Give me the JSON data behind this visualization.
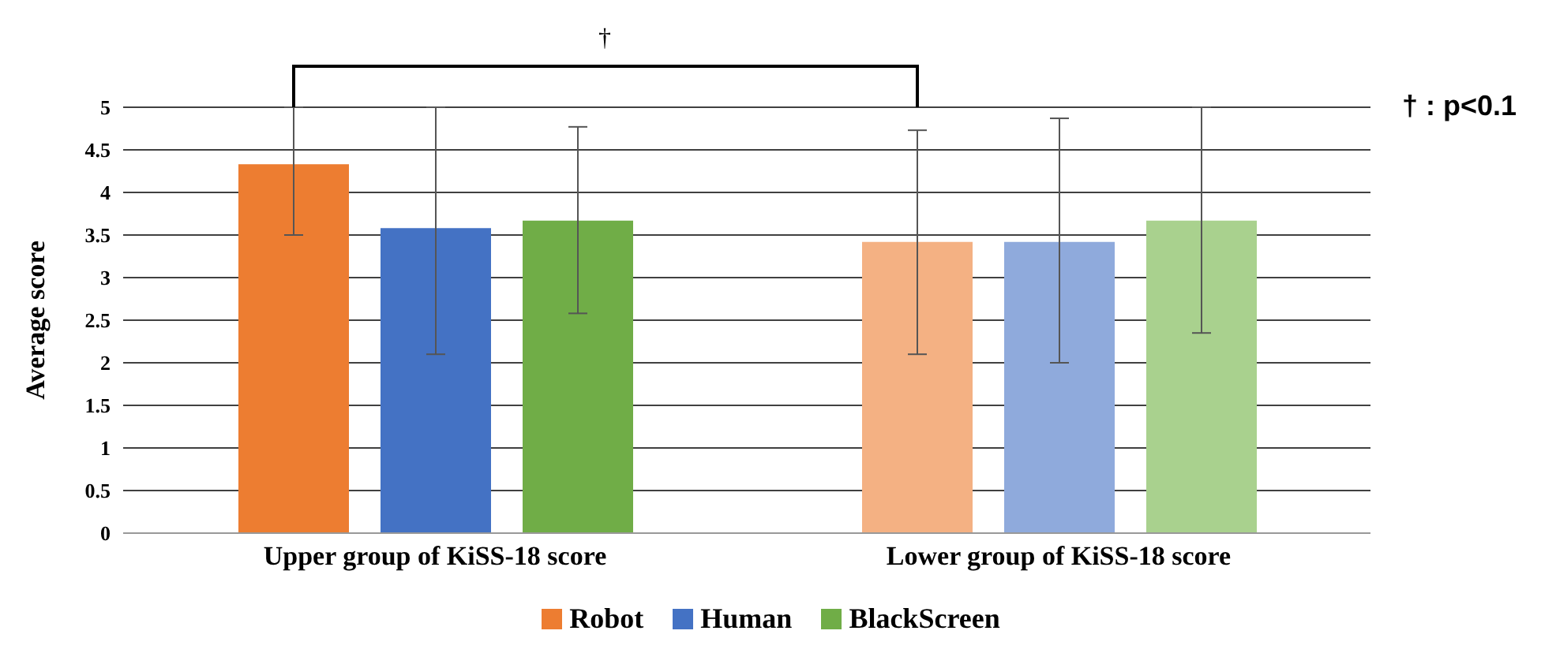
{
  "chart_data": {
    "type": "bar",
    "ylabel": "Average score",
    "categories": [
      "Upper group of KiSS-18 score",
      "Lower group of KiSS-18 score"
    ],
    "series": [
      {
        "name": "Robot",
        "colors": [
          "#ed7d31",
          "#f4b183"
        ],
        "values": [
          4.33,
          3.42
        ],
        "errors": [
          [
            3.5,
            5
          ],
          [
            2.1,
            4.73
          ]
        ]
      },
      {
        "name": "Human",
        "colors": [
          "#4472c4",
          "#8faadc"
        ],
        "values": [
          3.58,
          3.42
        ],
        "errors": [
          [
            2.1,
            5
          ],
          [
            2.0,
            4.87
          ]
        ]
      },
      {
        "name": "BlackScreen",
        "colors": [
          "#70ad47",
          "#a9d18e"
        ],
        "values": [
          3.67,
          3.67
        ],
        "errors": [
          [
            2.58,
            4.77
          ],
          [
            2.35,
            5
          ]
        ]
      }
    ],
    "ylim": [
      0,
      5
    ],
    "yticks": [
      0,
      0.5,
      1,
      1.5,
      2,
      2.5,
      3,
      3.5,
      4,
      4.5,
      5
    ],
    "grid": "y",
    "legend": "bottom",
    "annotations": [
      "†",
      "† : p<0.1"
    ]
  }
}
